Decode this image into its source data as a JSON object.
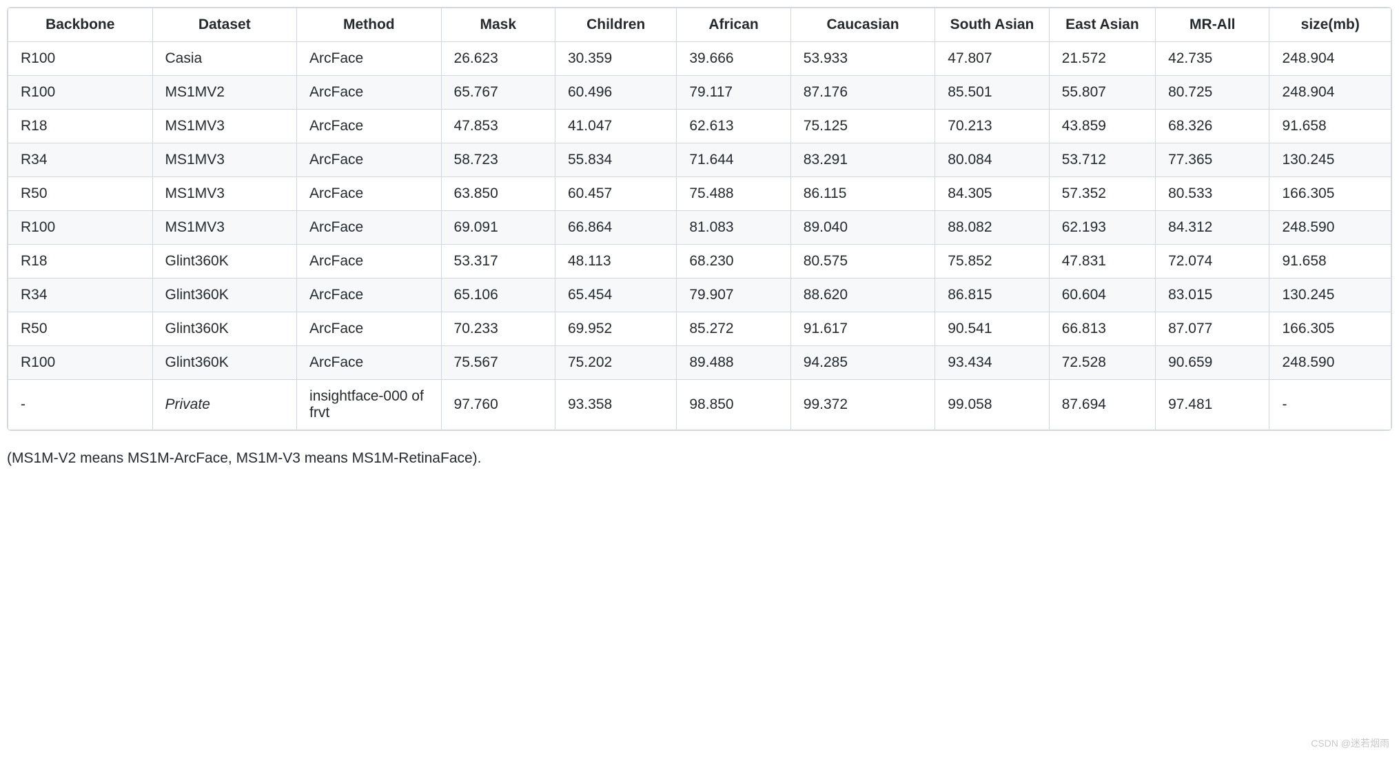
{
  "table": {
    "type": "table",
    "background_color": "#ffffff",
    "stripe_color": "#f6f8fa",
    "border_color": "#d0d7de",
    "text_color": "#24292e",
    "header_fontweight": 600,
    "cell_fontsize": 21,
    "columns": [
      "Backbone",
      "Dataset",
      "Method",
      "Mask",
      "Children",
      "African",
      "Caucasian",
      "South Asian",
      "East Asian",
      "MR-All",
      "size(mb)"
    ],
    "column_widths_pct": [
      9.5,
      9.5,
      9.5,
      7.5,
      8,
      7.5,
      9.5,
      7.5,
      7,
      7.5,
      8
    ],
    "rows": [
      [
        "R100",
        "Casia",
        "ArcFace",
        "26.623",
        "30.359",
        "39.666",
        "53.933",
        "47.807",
        "21.572",
        "42.735",
        "248.904"
      ],
      [
        "R100",
        "MS1MV2",
        "ArcFace",
        "65.767",
        "60.496",
        "79.117",
        "87.176",
        "85.501",
        "55.807",
        "80.725",
        "248.904"
      ],
      [
        "R18",
        "MS1MV3",
        "ArcFace",
        "47.853",
        "41.047",
        "62.613",
        "75.125",
        "70.213",
        "43.859",
        "68.326",
        "91.658"
      ],
      [
        "R34",
        "MS1MV3",
        "ArcFace",
        "58.723",
        "55.834",
        "71.644",
        "83.291",
        "80.084",
        "53.712",
        "77.365",
        "130.245"
      ],
      [
        "R50",
        "MS1MV3",
        "ArcFace",
        "63.850",
        "60.457",
        "75.488",
        "86.115",
        "84.305",
        "57.352",
        "80.533",
        "166.305"
      ],
      [
        "R100",
        "MS1MV3",
        "ArcFace",
        "69.091",
        "66.864",
        "81.083",
        "89.040",
        "88.082",
        "62.193",
        "84.312",
        "248.590"
      ],
      [
        "R18",
        "Glint360K",
        "ArcFace",
        "53.317",
        "48.113",
        "68.230",
        "80.575",
        "75.852",
        "47.831",
        "72.074",
        "91.658"
      ],
      [
        "R34",
        "Glint360K",
        "ArcFace",
        "65.106",
        "65.454",
        "79.907",
        "88.620",
        "86.815",
        "60.604",
        "83.015",
        "130.245"
      ],
      [
        "R50",
        "Glint360K",
        "ArcFace",
        "70.233",
        "69.952",
        "85.272",
        "91.617",
        "90.541",
        "66.813",
        "87.077",
        "166.305"
      ],
      [
        "R100",
        "Glint360K",
        "ArcFace",
        "75.567",
        "75.202",
        "89.488",
        "94.285",
        "93.434",
        "72.528",
        "90.659",
        "248.590"
      ],
      [
        "-",
        "Private",
        "insightface-000 of frvt",
        "97.760",
        "93.358",
        "98.850",
        "99.372",
        "99.058",
        "87.694",
        "97.481",
        "-"
      ]
    ],
    "italic_cells": [
      [
        10,
        1
      ]
    ]
  },
  "footnote": "(MS1M-V2 means MS1M-ArcFace, MS1M-V3 means MS1M-RetinaFace).",
  "watermark": "CSDN @迷若烟雨"
}
